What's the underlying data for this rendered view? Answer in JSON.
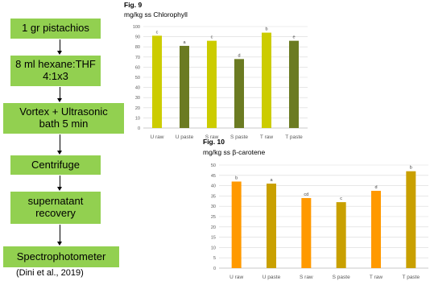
{
  "flowchart": {
    "steps": [
      "1 gr pistachios",
      "8 ml hexane:THF\n4:1x3",
      "Vortex + Ultrasonic\nbath 5 min",
      "Centrifuge",
      "supernatant\nrecovery",
      "Spectrophotometer"
    ],
    "citation": "(Dini et al., 2019)",
    "box_color": "#92D050"
  },
  "chart_data": [
    {
      "type": "bar",
      "figure_label": "Fig. 9",
      "title": "mg/kg ss Chlorophyll",
      "categories": [
        "U raw",
        "U paste",
        "S raw",
        "S paste",
        "T raw",
        "T paste"
      ],
      "values": [
        91,
        81,
        86,
        68,
        94,
        86
      ],
      "letters": [
        "c",
        "a",
        "c",
        "d",
        "b",
        "e"
      ],
      "colors": [
        "#CCCC00",
        "#6B7B22",
        "#CCCC00",
        "#6B7B22",
        "#CCCC00",
        "#6B7B22"
      ],
      "ylim": [
        0,
        100
      ],
      "yticks": [
        0,
        10,
        20,
        30,
        40,
        50,
        60,
        70,
        80,
        90,
        100
      ],
      "grid": true
    },
    {
      "type": "bar",
      "figure_label": "Fig. 10",
      "title": "mg/kg ss β-carotene",
      "categories": [
        "U raw",
        "U paste",
        "S raw",
        "S paste",
        "T raw",
        "T paste"
      ],
      "values": [
        42,
        41,
        34,
        32,
        37.5,
        47
      ],
      "letters": [
        "b",
        "a",
        "cd",
        "c",
        "d",
        "b"
      ],
      "colors": [
        "#FF9900",
        "#C9A000",
        "#FF9900",
        "#C9A000",
        "#FF9900",
        "#C9A000"
      ],
      "ylim": [
        0,
        50
      ],
      "yticks": [
        0,
        5,
        10,
        15,
        20,
        25,
        30,
        35,
        40,
        45,
        50
      ],
      "grid": true
    }
  ]
}
